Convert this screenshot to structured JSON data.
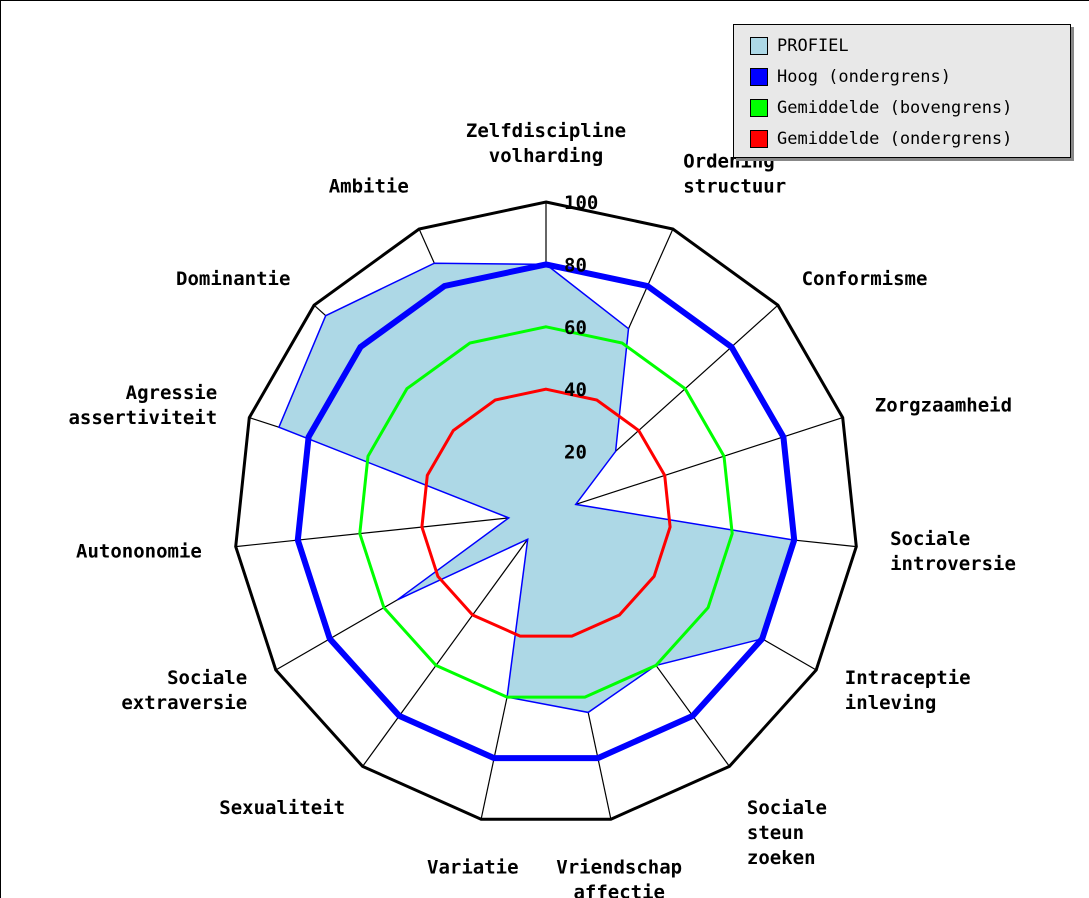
{
  "chart_data": {
    "type": "radar",
    "title": "",
    "categories": [
      [
        "Zelfdiscipline",
        "volharding"
      ],
      [
        "Ordening",
        "structuur"
      ],
      [
        "Conformisme"
      ],
      [
        "Zorgzaamheid"
      ],
      [
        "Sociale",
        "introversie"
      ],
      [
        "Intraceptie",
        "inleving"
      ],
      [
        "Sociale",
        "steun",
        "zoeken"
      ],
      [
        "Vriendschap",
        "affectie"
      ],
      [
        "Variatie"
      ],
      [
        "Sexualiteit"
      ],
      [
        "Sociale",
        "extraversie"
      ],
      [
        "Autononomie"
      ],
      [
        "Agressie",
        "assertiviteit"
      ],
      [
        "Dominantie"
      ],
      [
        "Ambitie"
      ]
    ],
    "rlim": [
      0,
      100
    ],
    "ticks": [
      "20",
      "40",
      "60",
      "80",
      "100"
    ],
    "tick_values": [
      20,
      40,
      60,
      80,
      100
    ],
    "series": [
      {
        "name": "PROFIEL",
        "color": "#add8e6",
        "stroke": "#0000ff",
        "fill": true,
        "values": [
          80,
          65,
          30,
          10,
          80,
          80,
          60,
          65,
          60,
          10,
          55,
          12,
          90,
          95,
          88
        ]
      },
      {
        "name": "Hoog (ondergrens)",
        "color": "#0000ff",
        "stroke_weight": "heavy",
        "values": [
          80,
          80,
          80,
          80,
          80,
          80,
          80,
          80,
          80,
          80,
          80,
          80,
          80,
          80,
          80
        ]
      },
      {
        "name": "Gemiddelde (bovengrens)",
        "color": "#00ff00",
        "values": [
          60,
          60,
          60,
          60,
          60,
          60,
          60,
          60,
          60,
          60,
          60,
          60,
          60,
          60,
          60
        ]
      },
      {
        "name": "Gemiddelde (ondergrens)",
        "color": "#ff0000",
        "values": [
          40,
          40,
          40,
          40,
          40,
          40,
          40,
          40,
          40,
          40,
          40,
          40,
          40,
          40,
          40
        ]
      }
    ],
    "legend_position": "top-right",
    "grid": true
  }
}
